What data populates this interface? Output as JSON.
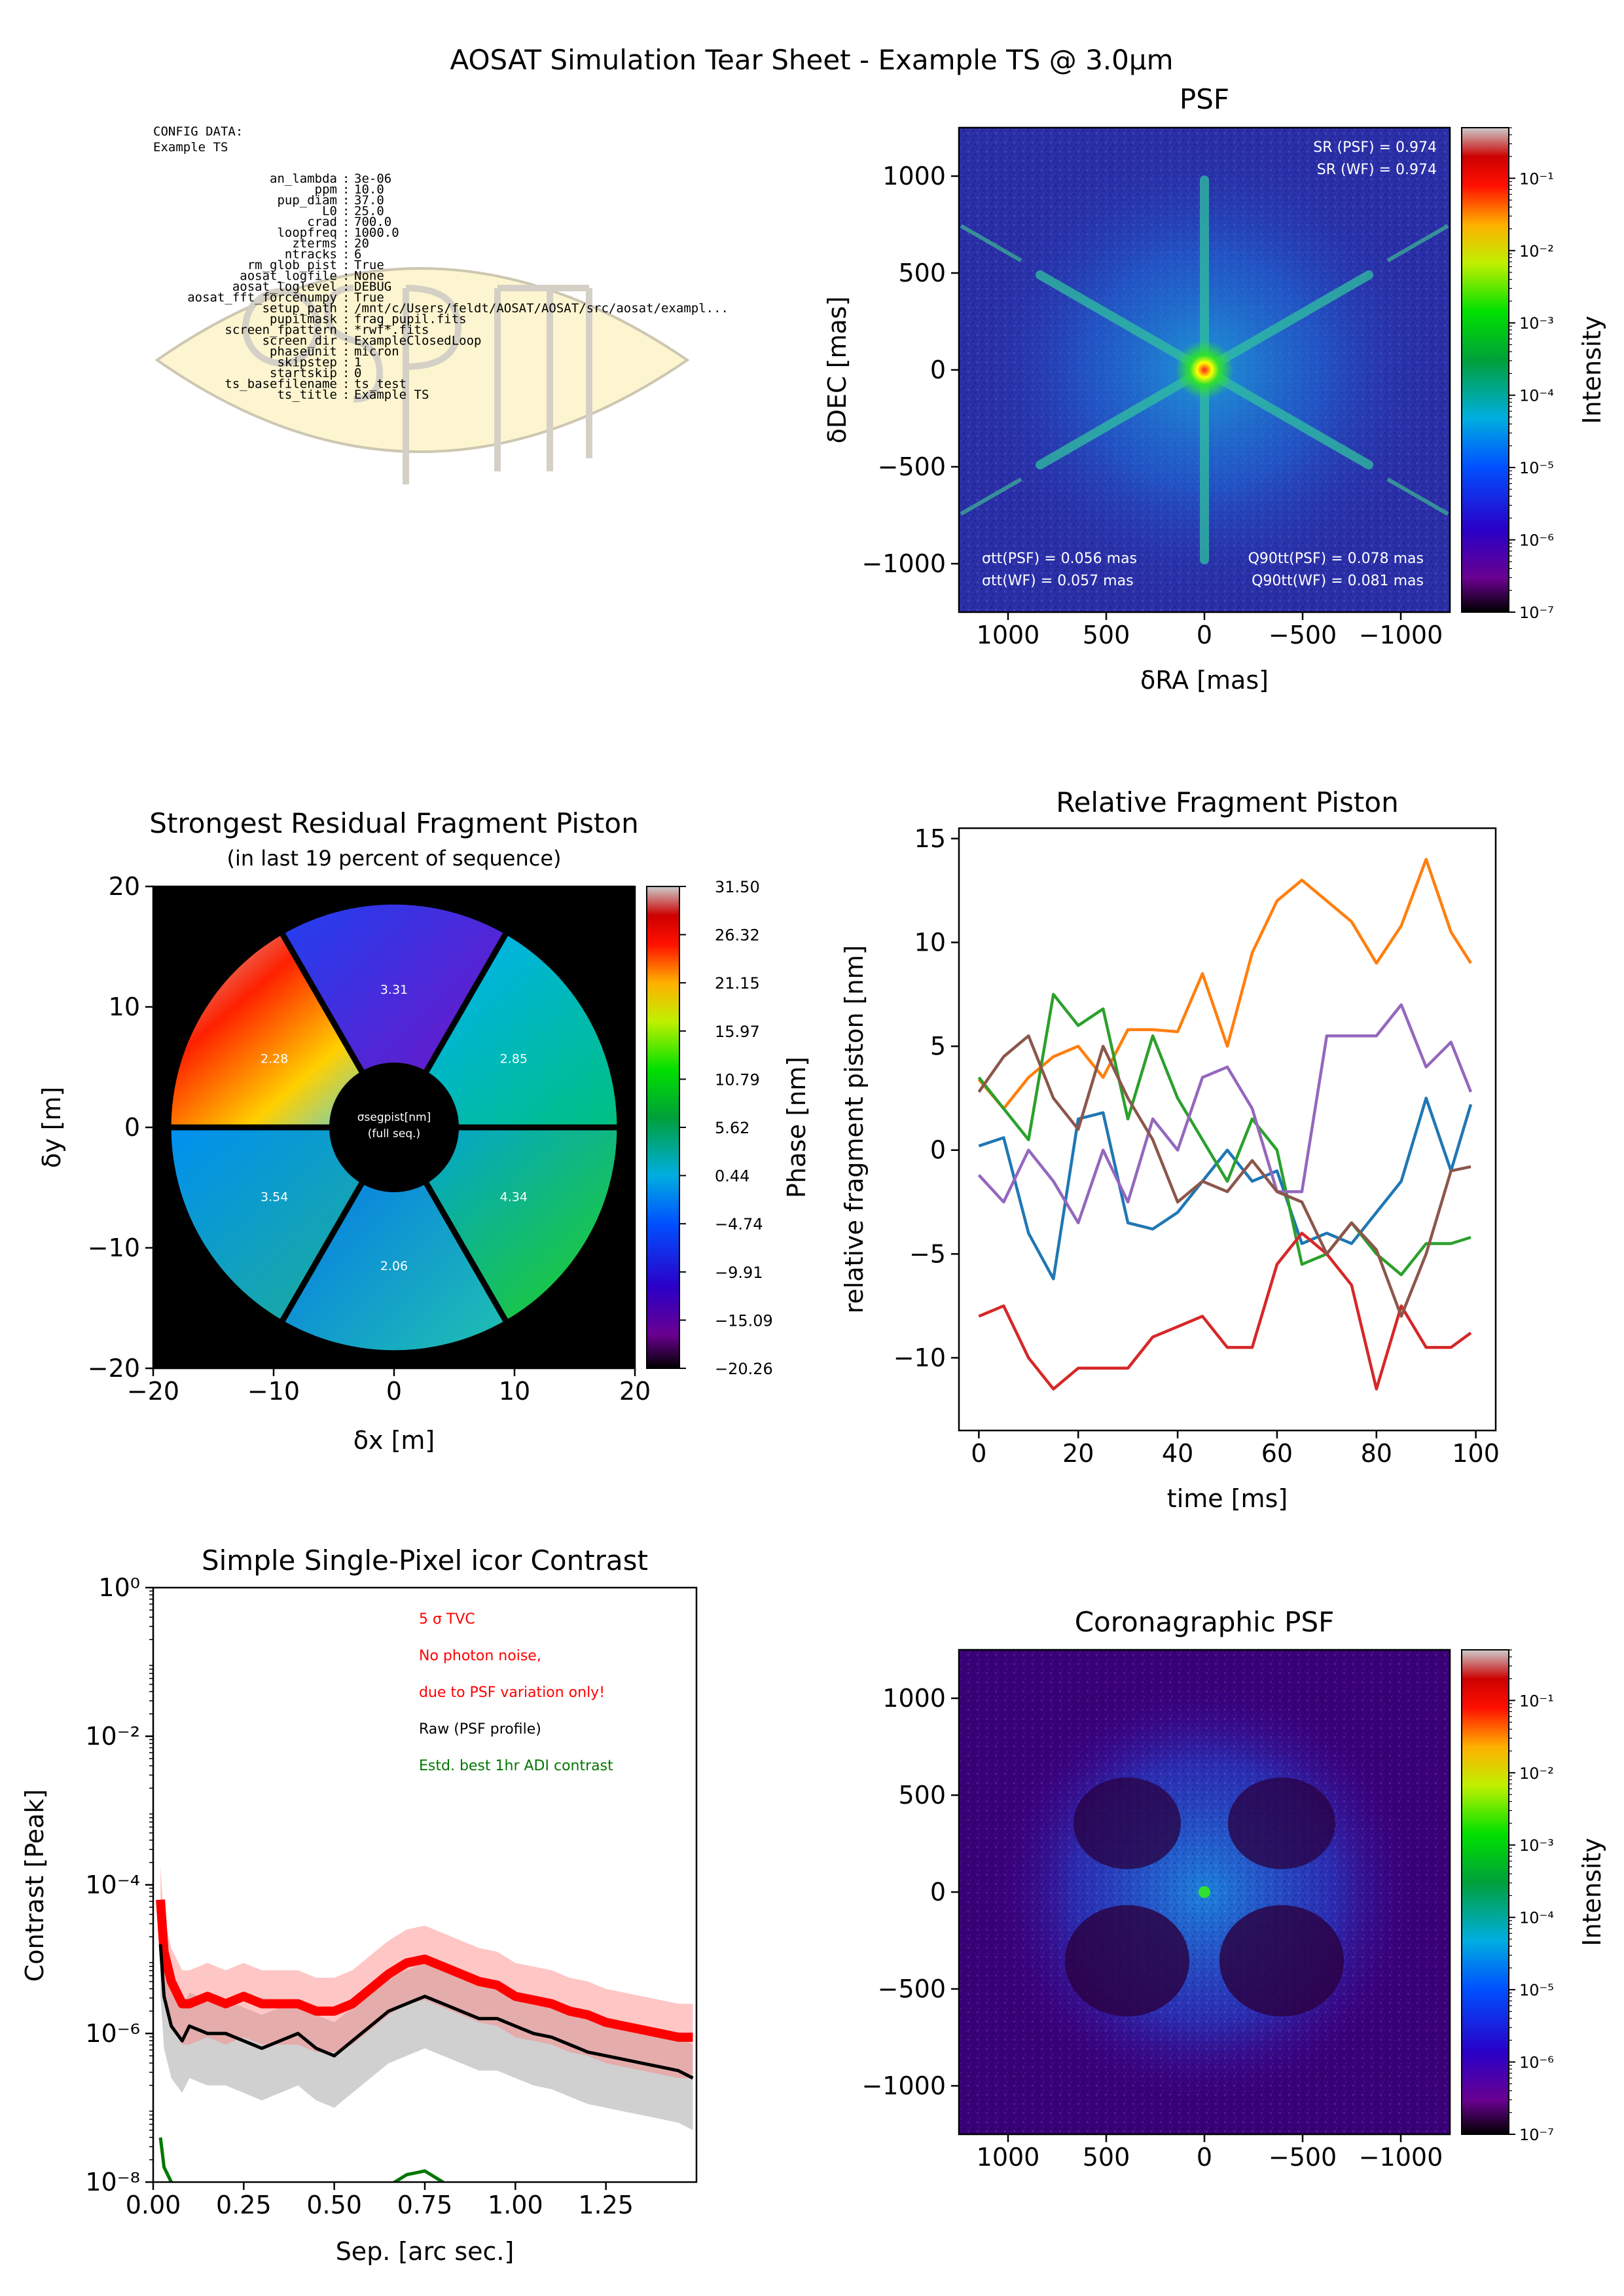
{
  "suptitle": "AOSAT Simulation Tear Sheet - Example TS @ 3.0μm",
  "config": {
    "header": [
      "CONFIG DATA:",
      "Example TS"
    ],
    "items": [
      [
        "an_lambda",
        "3e-06"
      ],
      [
        "ppm",
        "10.0"
      ],
      [
        "pup_diam",
        "37.0"
      ],
      [
        "L0",
        "25.0"
      ],
      [
        "crad",
        "700.0"
      ],
      [
        "loopfreq",
        "1000.0"
      ],
      [
        "zterms",
        "20"
      ],
      [
        "ntracks",
        "6"
      ],
      [
        "rm_glob_pist",
        "True"
      ],
      [
        "aosat_logfile",
        "None"
      ],
      [
        "aosat_loglevel",
        "DEBUG"
      ],
      [
        "aosat_fft_forcenumpy",
        "True"
      ],
      [
        "setup_path",
        "/mnt/c/Users/feldt/AOSAT/AOSAT/src/aosat/exampl..."
      ],
      [
        "pupilmask",
        "frag_pupil.fits"
      ],
      [
        "screen_fpattern",
        "*rwf*.fits"
      ],
      [
        "screen_dir",
        "ExampleClosedLoop"
      ],
      [
        "phaseunit",
        "micron"
      ],
      [
        "skipstep",
        "1"
      ],
      [
        "startskip",
        "0"
      ],
      [
        "ts_basefilename",
        "ts_test"
      ],
      [
        "ts_title",
        "Example TS"
      ]
    ]
  },
  "colors": {
    "c0": "#1f77b4",
    "c1": "#ff7f0e",
    "c2": "#2ca02c",
    "c3": "#d62728",
    "c4": "#9467bd",
    "c5": "#8c564b",
    "red": "#ff0000",
    "black": "#000000",
    "green": "#007700",
    "psf_bg": "#2a2fa8"
  },
  "chart_data": [
    {
      "id": "psf",
      "type": "heatmap",
      "title": "PSF",
      "xlabel": "δRA [mas]",
      "ylabel": "δDEC [mas]",
      "xlim": [
        1250,
        -1250
      ],
      "ylim": [
        -1250,
        1250
      ],
      "xticks": [
        "1000",
        "500",
        "0",
        "−500",
        "−1000"
      ],
      "xtick_values": [
        1000,
        500,
        0,
        -500,
        -1000
      ],
      "yticks": [
        "1000",
        "500",
        "0",
        "−500",
        "−1000"
      ],
      "ytick_values": [
        1000,
        500,
        0,
        -500,
        -1000
      ],
      "colorbar_label": "Intensity",
      "colorbar_ticks": [
        "10⁻¹",
        "10⁻²",
        "10⁻³",
        "10⁻⁴",
        "10⁻⁵",
        "10⁻⁶",
        "10⁻⁷"
      ],
      "colorbar_range": [
        -7,
        -0.3
      ],
      "annotations": [
        "SR (PSF) = 0.974",
        "SR (WF) = 0.974",
        "σtt(PSF) = 0.056 mas",
        "σtt(WF) = 0.057 mas",
        "Q90tt(PSF) = 0.078 mas",
        "Q90tt(WF) = 0.081 mas"
      ]
    },
    {
      "id": "pupil",
      "type": "heatmap",
      "title": "Strongest Residual Fragment Piston",
      "subtitle": "(in last 19 percent of sequence)",
      "xlabel": "δx [m]",
      "ylabel": "δy [m]",
      "xlim": [
        -20,
        20
      ],
      "ylim": [
        -20,
        20
      ],
      "xticks": [
        "−20",
        "−10",
        "0",
        "10",
        "20"
      ],
      "xtick_values": [
        -20,
        -10,
        0,
        10,
        20
      ],
      "yticks": [
        "20",
        "10",
        "0",
        "−10",
        "−20"
      ],
      "ytick_values": [
        20,
        10,
        0,
        -10,
        -20
      ],
      "colorbar_label": "Phase [nm]",
      "colorbar_ticks": [
        "31.50",
        "26.32",
        "21.15",
        "15.97",
        "10.79",
        "5.62",
        "0.44",
        "−4.74",
        "−9.91",
        "−15.09",
        "−20.26"
      ],
      "segment_labels": [
        "3.31",
        "2.85",
        "4.34",
        "2.06",
        "3.54",
        "2.28"
      ],
      "center_label": [
        "σsegpist[nm]",
        "(full seq.)"
      ]
    },
    {
      "id": "piston",
      "type": "line",
      "title": "Relative Fragment Piston",
      "xlabel": "time [ms]",
      "ylabel": "relative fragment piston [nm]",
      "xlim": [
        -4,
        104
      ],
      "ylim": [
        -13.5,
        15.5
      ],
      "xticks": [
        "0",
        "20",
        "40",
        "60",
        "80",
        "100"
      ],
      "xtick_values": [
        0,
        20,
        40,
        60,
        80,
        100
      ],
      "yticks": [
        "15",
        "10",
        "5",
        "0",
        "−5",
        "−10"
      ],
      "ytick_values": [
        15,
        10,
        5,
        0,
        -5,
        -10
      ],
      "x": [
        0,
        5,
        10,
        15,
        20,
        25,
        30,
        35,
        40,
        45,
        50,
        55,
        60,
        65,
        70,
        75,
        80,
        85,
        90,
        95,
        99
      ],
      "series": [
        {
          "color": "c0",
          "values": [
            0.2,
            0.6,
            -4,
            -6.2,
            1.5,
            1.8,
            -3.5,
            -3.8,
            -3,
            -1.5,
            0,
            -1.5,
            -1,
            -4.5,
            -4,
            -4.5,
            -3,
            -1.5,
            2.5,
            -1,
            2.2
          ]
        },
        {
          "color": "c1",
          "values": [
            3.4,
            2,
            3.5,
            4.5,
            5,
            3.5,
            5.8,
            5.8,
            5.7,
            8.5,
            5,
            9.5,
            12,
            13,
            12,
            11,
            9,
            10.8,
            14,
            10.5,
            9
          ]
        },
        {
          "color": "c2",
          "values": [
            3.5,
            2,
            0.5,
            7.5,
            6,
            6.8,
            1.5,
            5.5,
            2.5,
            0.5,
            -1.5,
            1.5,
            0,
            -5.5,
            -5,
            -3.5,
            -5,
            -6,
            -4.5,
            -4.5,
            -4.2
          ]
        },
        {
          "color": "c3",
          "values": [
            -8,
            -7.5,
            -10,
            -11.5,
            -10.5,
            -10.5,
            -10.5,
            -9,
            -8.5,
            -8,
            -9.5,
            -9.5,
            -5.5,
            -4,
            -5,
            -6.5,
            -11.5,
            -7.5,
            -9.5,
            -9.5,
            -8.8
          ]
        },
        {
          "color": "c4",
          "values": [
            -1.2,
            -2.5,
            0,
            -1.5,
            -3.5,
            0,
            -2.5,
            1.5,
            0,
            3.5,
            4,
            2,
            -2,
            -2,
            5.5,
            5.5,
            5.5,
            7,
            4,
            5.2,
            2.8
          ]
        },
        {
          "color": "c5",
          "values": [
            2.8,
            4.5,
            5.5,
            2.5,
            1,
            5,
            2.5,
            0.5,
            -2.5,
            -1.5,
            -2,
            -0.5,
            -2,
            -2.5,
            -5,
            -3.5,
            -4.8,
            -8,
            -5,
            -1,
            -0.8
          ]
        }
      ]
    },
    {
      "id": "contrast",
      "type": "line",
      "title": "Simple Single-Pixel icor Contrast",
      "xlabel": "Sep. [arc sec.]",
      "ylabel": "Contrast [Peak]",
      "yscale": "log",
      "xlim": [
        0,
        1.5
      ],
      "ylim": [
        1e-08,
        1
      ],
      "xticks": [
        "0.00",
        "0.25",
        "0.50",
        "0.75",
        "1.00",
        "1.25"
      ],
      "xtick_values": [
        0,
        0.25,
        0.5,
        0.75,
        1.0,
        1.25
      ],
      "yticks": [
        "10⁰",
        "10⁻²",
        "10⁻⁴",
        "10⁻⁶",
        "10⁻⁸"
      ],
      "ytick_values": [
        0,
        -2,
        -4,
        -6,
        -8
      ],
      "legend": [
        {
          "text": "5 σ TVC",
          "color": "red"
        },
        {
          "text": "No photon noise,",
          "color": "red"
        },
        {
          "text": "due to PSF variation only!",
          "color": "red"
        },
        {
          "text": "Raw (PSF profile)",
          "color": "black"
        },
        {
          "text": "Estd. best 1hr ADI contrast",
          "color": "green"
        }
      ],
      "x": [
        0.02,
        0.03,
        0.05,
        0.08,
        0.1,
        0.15,
        0.2,
        0.25,
        0.3,
        0.35,
        0.4,
        0.45,
        0.5,
        0.55,
        0.6,
        0.65,
        0.7,
        0.75,
        0.8,
        0.85,
        0.9,
        0.95,
        1.0,
        1.05,
        1.1,
        1.15,
        1.2,
        1.25,
        1.3,
        1.35,
        1.4,
        1.45,
        1.49
      ],
      "series": [
        {
          "name": "5 σ TVC",
          "color": "red",
          "log10_values": [
            -4.2,
            -4.9,
            -5.3,
            -5.6,
            -5.6,
            -5.5,
            -5.6,
            -5.5,
            -5.6,
            -5.6,
            -5.6,
            -5.7,
            -5.7,
            -5.6,
            -5.4,
            -5.2,
            -5.05,
            -5.0,
            -5.1,
            -5.2,
            -5.3,
            -5.35,
            -5.5,
            -5.55,
            -5.6,
            -5.7,
            -5.75,
            -5.85,
            -5.9,
            -5.95,
            -6.0,
            -6.05,
            -6.05
          ]
        },
        {
          "name": "Raw (PSF profile)",
          "color": "black",
          "log10_values": [
            -4.8,
            -5.5,
            -5.9,
            -6.1,
            -5.9,
            -6.0,
            -6.0,
            -6.1,
            -6.2,
            -6.1,
            -6.0,
            -6.2,
            -6.3,
            -6.1,
            -5.9,
            -5.7,
            -5.6,
            -5.5,
            -5.6,
            -5.7,
            -5.8,
            -5.8,
            -5.9,
            -6.0,
            -6.05,
            -6.15,
            -6.25,
            -6.3,
            -6.35,
            -6.4,
            -6.45,
            -6.5,
            -6.6
          ]
        },
        {
          "name": "Estd. best 1hr ADI contrast",
          "color": "green",
          "log10_values": [
            -7.4,
            -7.8,
            -8.0,
            -8.3,
            -8.4,
            -8.4,
            -8.5,
            -8.5,
            -8.5,
            -8.5,
            -8.5,
            -8.5,
            -8.5,
            -8.5,
            -8.3,
            -8.05,
            -7.9,
            -7.85,
            -8.0,
            -8.2,
            -8.5,
            -8.6,
            -8.6,
            -8.6,
            -8.6,
            -8.6,
            -8.6,
            -8.6,
            -8.6,
            -8.6,
            -8.6,
            -8.6,
            -8.6
          ]
        }
      ]
    },
    {
      "id": "corpsf",
      "type": "heatmap",
      "title": "Coronagraphic PSF",
      "xlim": [
        1250,
        -1250
      ],
      "ylim": [
        -1250,
        1250
      ],
      "xticks": [
        "1000",
        "500",
        "0",
        "−500",
        "−1000"
      ],
      "xtick_values": [
        1000,
        500,
        0,
        -500,
        -1000
      ],
      "yticks": [
        "1000",
        "500",
        "0",
        "−500",
        "−1000"
      ],
      "ytick_values": [
        1000,
        500,
        0,
        -500,
        -1000
      ],
      "colorbar_label": "Intensity",
      "colorbar_ticks": [
        "10⁻¹",
        "10⁻²",
        "10⁻³",
        "10⁻⁴",
        "10⁻⁵",
        "10⁻⁶",
        "10⁻⁷"
      ],
      "colorbar_range": [
        -7,
        -0.3
      ]
    }
  ]
}
